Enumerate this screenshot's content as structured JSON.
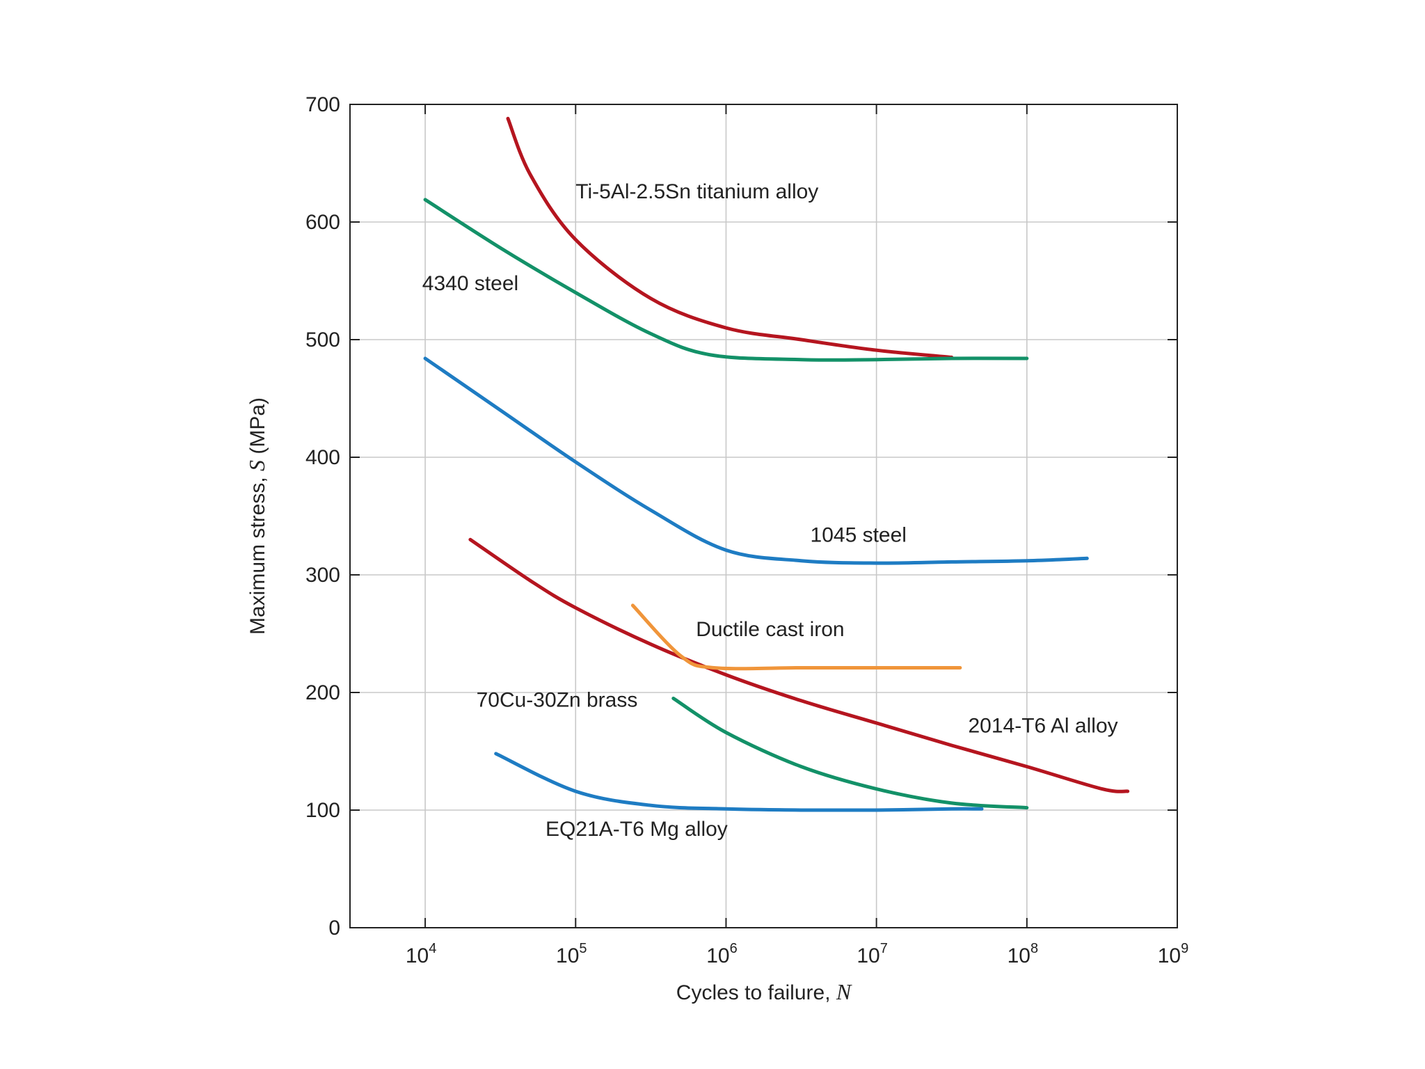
{
  "chart_data": {
    "type": "line",
    "xscale": "log10",
    "xlim_exp": [
      3.5,
      9
    ],
    "ylim": [
      0,
      700
    ],
    "x_ticks": [
      {
        "base": "10",
        "exp": "4",
        "value_exp": 4
      },
      {
        "base": "10",
        "exp": "5",
        "value_exp": 5
      },
      {
        "base": "10",
        "exp": "6",
        "value_exp": 6
      },
      {
        "base": "10",
        "exp": "7",
        "value_exp": 7
      },
      {
        "base": "10",
        "exp": "8",
        "value_exp": 8
      },
      {
        "base": "10",
        "exp": "9",
        "value_exp": 9
      }
    ],
    "y_ticks": [
      {
        "label": "0",
        "value": 0
      },
      {
        "label": "100",
        "value": 100
      },
      {
        "label": "200",
        "value": 200
      },
      {
        "label": "300",
        "value": 300
      },
      {
        "label": "400",
        "value": 400
      },
      {
        "label": "500",
        "value": 500
      },
      {
        "label": "600",
        "value": 600
      },
      {
        "label": "700",
        "value": 700
      }
    ],
    "xlabel": {
      "text": "Cycles to failure, ",
      "symbol": "N"
    },
    "ylabel": {
      "text": "Maximum stress, ",
      "symbol": "S",
      "suffix": " (MPa)"
    },
    "grid": true,
    "series": [
      {
        "name": "Ti-5Al-2.5Sn titanium alloy",
        "color": "#b5151f",
        "points": [
          [
            4.55,
            688
          ],
          [
            4.7,
            640
          ],
          [
            5.0,
            585
          ],
          [
            5.5,
            535
          ],
          [
            6.0,
            510
          ],
          [
            6.5,
            500
          ],
          [
            7.0,
            491
          ],
          [
            7.5,
            485
          ]
        ],
        "label_at": [
          5.0,
          620
        ],
        "label_anchor": "start"
      },
      {
        "name": "4340 steel",
        "color": "#139168",
        "points": [
          [
            4.0,
            619
          ],
          [
            4.5,
            578
          ],
          [
            5.0,
            540
          ],
          [
            5.5,
            505
          ],
          [
            5.9,
            487
          ],
          [
            6.5,
            483
          ],
          [
            7.0,
            483
          ],
          [
            7.5,
            484
          ],
          [
            8.0,
            484
          ]
        ],
        "label_at": [
          3.98,
          542
        ],
        "label_anchor": "start"
      },
      {
        "name": "1045 steel",
        "color": "#1e7cc3",
        "points": [
          [
            4.0,
            484
          ],
          [
            4.5,
            440
          ],
          [
            5.0,
            396
          ],
          [
            5.5,
            355
          ],
          [
            6.0,
            321
          ],
          [
            6.5,
            312
          ],
          [
            7.0,
            310
          ],
          [
            7.5,
            311
          ],
          [
            8.0,
            312
          ],
          [
            8.4,
            314
          ]
        ],
        "label_at": [
          6.56,
          328
        ],
        "label_anchor": "start"
      },
      {
        "name": "2014-T6 Al alloy",
        "color": "#b5151f",
        "points": [
          [
            4.3,
            330
          ],
          [
            4.7,
            295
          ],
          [
            5.0,
            272
          ],
          [
            5.5,
            241
          ],
          [
            6.0,
            215
          ],
          [
            6.5,
            193
          ],
          [
            7.0,
            174
          ],
          [
            7.5,
            155
          ],
          [
            8.0,
            137
          ],
          [
            8.5,
            118
          ],
          [
            8.67,
            116
          ]
        ],
        "label_at": [
          7.61,
          166
        ],
        "label_anchor": "start"
      },
      {
        "name": "Ductile cast iron",
        "color": "#f0953a",
        "points": [
          [
            5.38,
            274
          ],
          [
            5.7,
            231
          ],
          [
            5.92,
            221
          ],
          [
            6.5,
            221
          ],
          [
            7.0,
            221
          ],
          [
            7.5,
            221
          ],
          [
            7.55,
            221
          ]
        ],
        "label_at": [
          5.8,
          248
        ],
        "label_anchor": "start"
      },
      {
        "name": "70Cu-30Zn brass",
        "color": "#139168",
        "points": [
          [
            5.65,
            195
          ],
          [
            6.0,
            166
          ],
          [
            6.5,
            137
          ],
          [
            7.0,
            118
          ],
          [
            7.5,
            106
          ],
          [
            8.0,
            102
          ]
        ],
        "label_at": [
          4.34,
          188
        ],
        "label_anchor": "start"
      },
      {
        "name": "EQ21A-T6 Mg alloy",
        "color": "#1e7cc3",
        "points": [
          [
            4.47,
            148
          ],
          [
            5.0,
            116
          ],
          [
            5.5,
            104
          ],
          [
            6.0,
            101
          ],
          [
            6.5,
            100
          ],
          [
            7.0,
            100
          ],
          [
            7.5,
            101
          ],
          [
            7.7,
            101
          ]
        ],
        "label_at": [
          4.8,
          78
        ],
        "label_anchor": "start"
      }
    ]
  }
}
